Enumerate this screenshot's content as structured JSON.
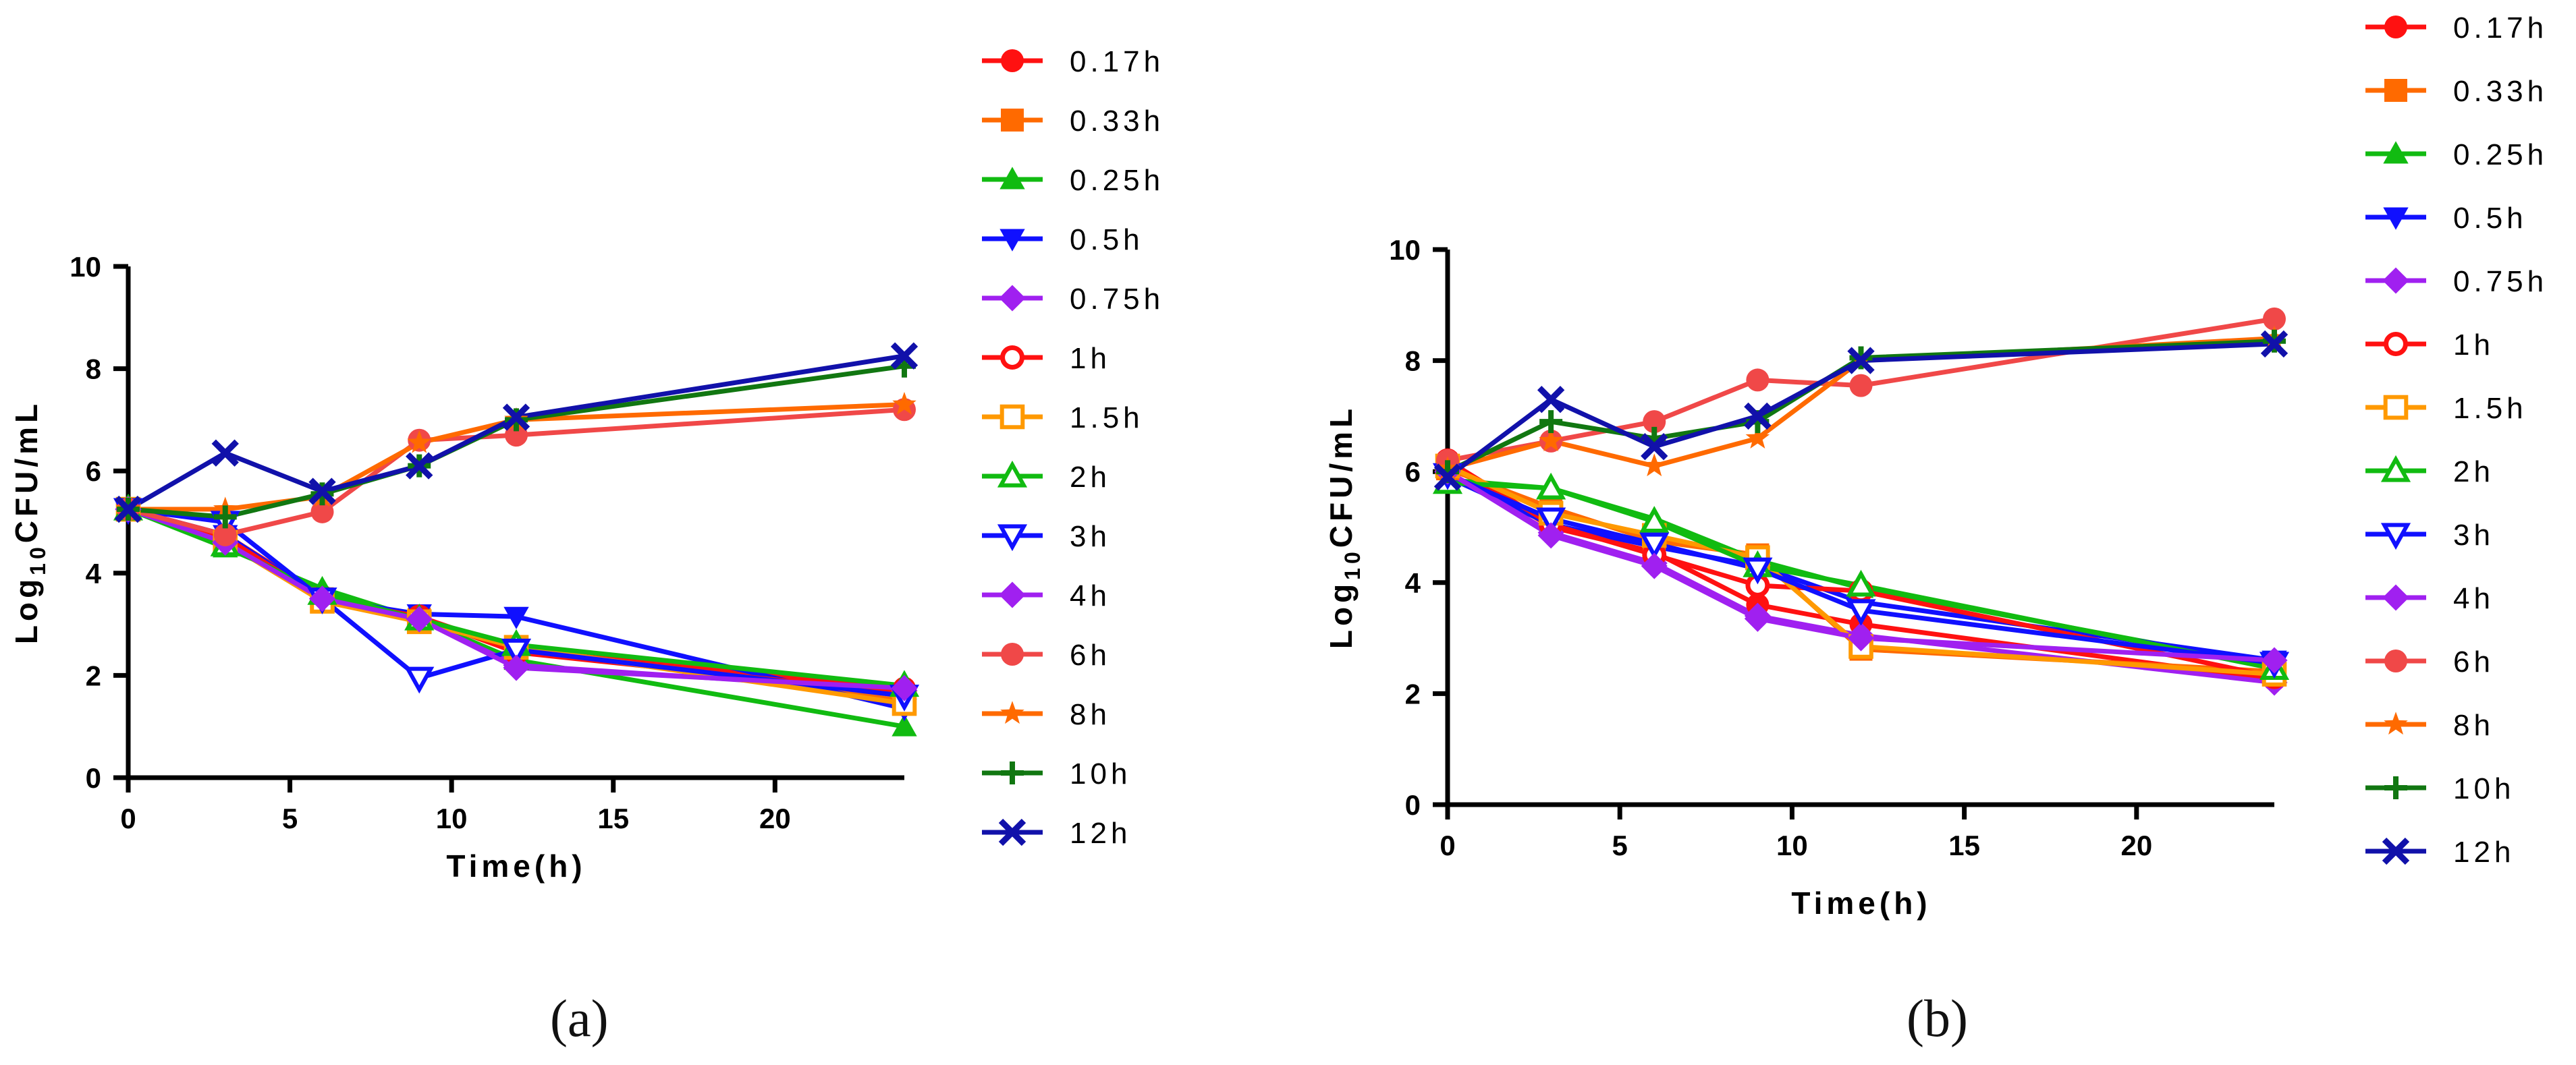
{
  "legend_labels": [
    "0.17h",
    "0.33h",
    "0.25h",
    "0.5h",
    "0.75h",
    "1h",
    "1.5h",
    "2h",
    "3h",
    "4h",
    "6h",
    "8h",
    "10h",
    "12h"
  ],
  "series_styles": [
    {
      "color": "#ff1111",
      "marker": "circle"
    },
    {
      "color": "#ff6a00",
      "marker": "square"
    },
    {
      "color": "#11bb11",
      "marker": "triangle"
    },
    {
      "color": "#1010ff",
      "marker": "triangle-down"
    },
    {
      "color": "#a020f0",
      "marker": "diamond"
    },
    {
      "color": "#ff1111",
      "marker": "circle-open"
    },
    {
      "color": "#ff9900",
      "marker": "square-open"
    },
    {
      "color": "#11bb11",
      "marker": "triangle-open"
    },
    {
      "color": "#1010ff",
      "marker": "triangle-down-open"
    },
    {
      "color": "#a020f0",
      "marker": "diamond"
    },
    {
      "color": "#f04848",
      "marker": "circle"
    },
    {
      "color": "#ff6a00",
      "marker": "star"
    },
    {
      "color": "#117711",
      "marker": "plus"
    },
    {
      "color": "#1111aa",
      "marker": "cross"
    }
  ],
  "chart_data": [
    {
      "panel_label": "(a)",
      "type": "line",
      "title": "",
      "xlabel": "Time(h)",
      "ylabel_main": "Log",
      "ylabel_sub": "10",
      "ylabel_rest": "CFU/mL",
      "xlim": [
        0,
        24
      ],
      "ylim": [
        0,
        10
      ],
      "xticks": [
        0,
        5,
        10,
        15,
        20
      ],
      "yticks": [
        0,
        2,
        4,
        6,
        8,
        10
      ],
      "x": [
        0,
        3,
        6,
        9,
        12,
        24
      ],
      "grid": false,
      "legend_position": "right",
      "series": [
        {
          "name": "0.17h",
          "values": [
            5.25,
            4.75,
            3.55,
            3.15,
            2.5,
            1.75
          ]
        },
        {
          "name": "0.33h",
          "values": [
            5.25,
            4.6,
            3.5,
            3.1,
            2.55,
            1.5
          ]
        },
        {
          "name": "0.25h",
          "values": [
            5.25,
            4.5,
            3.7,
            3.1,
            2.3,
            1.0
          ]
        },
        {
          "name": "0.5h",
          "values": [
            5.25,
            4.75,
            3.5,
            3.2,
            3.15,
            1.35
          ]
        },
        {
          "name": "0.75h",
          "values": [
            5.25,
            4.6,
            3.5,
            3.1,
            2.2,
            1.7
          ]
        },
        {
          "name": "1h",
          "values": [
            5.25,
            4.7,
            3.5,
            3.15,
            2.45,
            1.65
          ]
        },
        {
          "name": "1.5h",
          "values": [
            5.25,
            4.6,
            3.45,
            3.05,
            2.55,
            1.45
          ]
        },
        {
          "name": "2h",
          "values": [
            5.25,
            4.55,
            3.6,
            3.1,
            2.6,
            1.8
          ]
        },
        {
          "name": "3h",
          "values": [
            5.25,
            5.0,
            3.5,
            1.95,
            2.5,
            1.6
          ]
        },
        {
          "name": "4h",
          "values": [
            5.25,
            4.6,
            3.5,
            3.1,
            2.15,
            1.75
          ]
        },
        {
          "name": "6h",
          "values": [
            5.25,
            4.75,
            5.2,
            6.6,
            6.7,
            7.2
          ]
        },
        {
          "name": "8h",
          "values": [
            5.25,
            5.25,
            5.5,
            6.55,
            7.0,
            7.3
          ]
        },
        {
          "name": "10h",
          "values": [
            5.25,
            5.1,
            5.55,
            6.1,
            7.0,
            8.05
          ]
        },
        {
          "name": "12h",
          "values": [
            5.25,
            6.35,
            5.6,
            6.1,
            7.05,
            8.25
          ]
        }
      ]
    },
    {
      "panel_label": "(b)",
      "type": "line",
      "title": "",
      "xlabel": "Time(h)",
      "ylabel_main": "Log",
      "ylabel_sub": "10",
      "ylabel_rest": "CFU/mL",
      "xlim": [
        0,
        24
      ],
      "ylim": [
        0,
        10
      ],
      "xticks": [
        0,
        5,
        10,
        15,
        20
      ],
      "yticks": [
        0,
        2,
        4,
        6,
        8,
        10
      ],
      "x": [
        0,
        3,
        6,
        9,
        12,
        24
      ],
      "grid": false,
      "legend_position": "right",
      "series": [
        {
          "name": "0.17h",
          "values": [
            6.15,
            5.0,
            4.55,
            3.6,
            3.25,
            2.25
          ]
        },
        {
          "name": "0.33h",
          "values": [
            6.05,
            5.35,
            4.75,
            4.5,
            2.8,
            2.4
          ]
        },
        {
          "name": "0.25h",
          "values": [
            5.85,
            5.7,
            5.15,
            4.4,
            3.9,
            2.5
          ]
        },
        {
          "name": "0.5h",
          "values": [
            5.9,
            5.05,
            4.65,
            4.3,
            3.65,
            2.6
          ]
        },
        {
          "name": "0.75h",
          "values": [
            6.0,
            4.9,
            4.35,
            3.4,
            3.05,
            2.2
          ]
        },
        {
          "name": "1h",
          "values": [
            6.2,
            5.05,
            4.5,
            3.95,
            3.85,
            2.3
          ]
        },
        {
          "name": "1.5h",
          "values": [
            6.1,
            5.25,
            4.85,
            4.45,
            2.85,
            2.35
          ]
        },
        {
          "name": "2h",
          "values": [
            5.8,
            5.7,
            5.1,
            4.3,
            3.95,
            2.45
          ]
        },
        {
          "name": "3h",
          "values": [
            5.95,
            5.15,
            4.7,
            4.25,
            3.5,
            2.55
          ]
        },
        {
          "name": "4h",
          "values": [
            6.0,
            4.85,
            4.3,
            3.35,
            3.0,
            2.6
          ]
        },
        {
          "name": "6h",
          "values": [
            6.2,
            6.55,
            6.9,
            7.65,
            7.55,
            8.75
          ]
        },
        {
          "name": "8h",
          "values": [
            6.05,
            6.55,
            6.1,
            6.6,
            8.0,
            8.4
          ]
        },
        {
          "name": "10h",
          "values": [
            6.0,
            6.9,
            6.6,
            6.9,
            8.05,
            8.35
          ]
        },
        {
          "name": "12h",
          "values": [
            5.9,
            7.3,
            6.45,
            7.0,
            8.0,
            8.3
          ]
        }
      ]
    }
  ]
}
